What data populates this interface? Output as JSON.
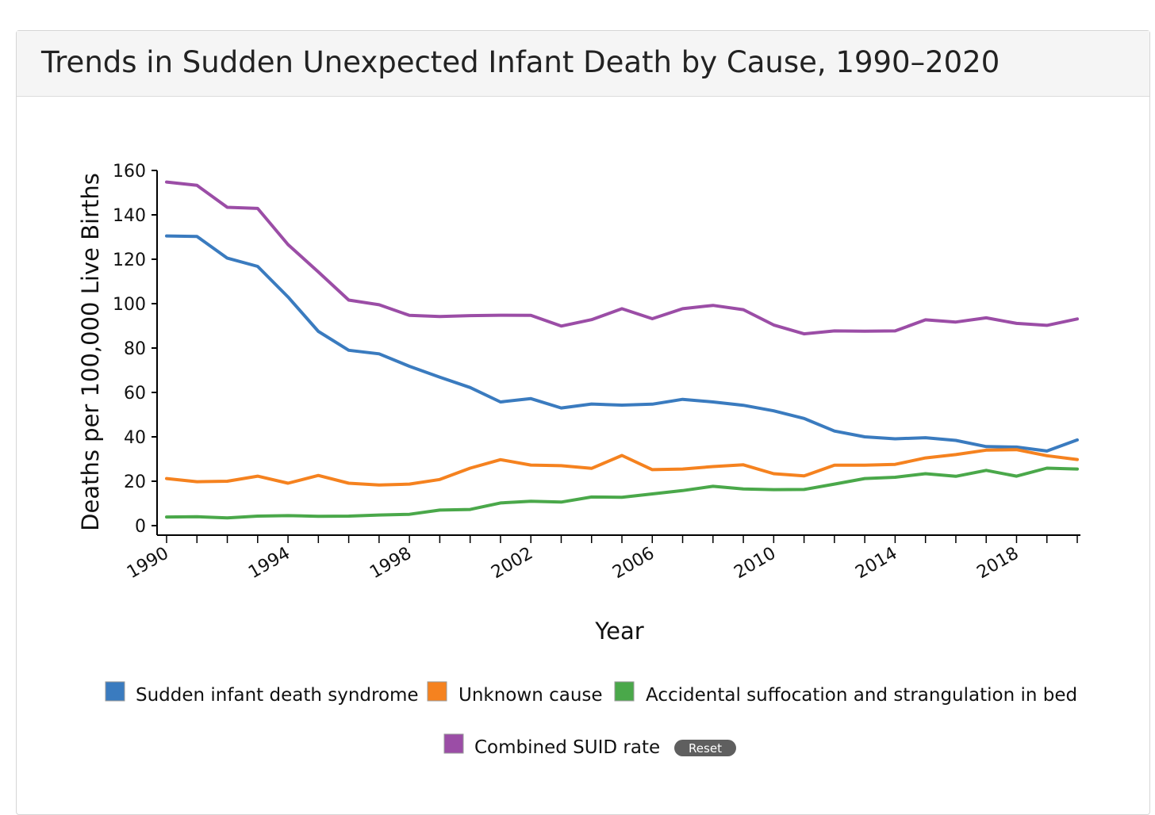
{
  "title": "Trends in Sudden Unexpected Infant Death by Cause, 1990–2020",
  "reset_label": "Reset",
  "chart_data": {
    "type": "line",
    "xlabel": "Year",
    "ylabel": "Deaths per 100,000 Live Births",
    "xlim": [
      1990,
      2020
    ],
    "ylim": [
      0,
      160
    ],
    "x_ticks": [
      1990,
      1994,
      1998,
      2002,
      2006,
      2010,
      2014,
      2018
    ],
    "y_ticks": [
      0,
      20,
      40,
      60,
      80,
      100,
      120,
      140,
      160
    ],
    "grid": false,
    "legend_position": "bottom",
    "x": [
      1990,
      1991,
      1992,
      1993,
      1994,
      1995,
      1996,
      1997,
      1998,
      1999,
      2000,
      2001,
      2002,
      2003,
      2004,
      2005,
      2006,
      2007,
      2008,
      2009,
      2010,
      2011,
      2012,
      2013,
      2014,
      2015,
      2016,
      2017,
      2018,
      2019,
      2020
    ],
    "series": [
      {
        "name": "Sudden infant death syndrome",
        "color": "#3a7bbf",
        "values": [
          130.5,
          130.3,
          120.5,
          116.8,
          103,
          87.5,
          79,
          77.4,
          71.8,
          66.9,
          62.2,
          55.7,
          57.2,
          53,
          54.8,
          54.3,
          54.7,
          56.9,
          55.7,
          54.2,
          51.7,
          48.3,
          42.6,
          40,
          39.1,
          39.6,
          38.4,
          35.6,
          35.4,
          33.6,
          38.6
        ]
      },
      {
        "name": "Unknown cause",
        "color": "#f5821f",
        "values": [
          21.2,
          19.8,
          20,
          22.3,
          19.1,
          22.6,
          19.1,
          18.3,
          18.7,
          20.8,
          25.9,
          29.7,
          27.3,
          27,
          25.8,
          31.6,
          25.2,
          25.5,
          26.6,
          27.4,
          23.4,
          22.4,
          27.2,
          27.2,
          27.6,
          30.5,
          32,
          34,
          34.2,
          31.5,
          29.8
        ]
      },
      {
        "name": "Accidental suffocation and strangulation in bed",
        "color": "#4aa84a",
        "values": [
          3.9,
          4,
          3.5,
          4.3,
          4.5,
          4.2,
          4.3,
          4.8,
          5.1,
          7,
          7.3,
          10.2,
          11,
          10.6,
          12.9,
          12.8,
          14.3,
          15.8,
          17.7,
          16.5,
          16.2,
          16.3,
          18.7,
          21.2,
          21.8,
          23.4,
          22.2,
          24.9,
          22.3,
          25.9,
          25.5
        ]
      },
      {
        "name": "Combined SUID rate",
        "color": "#9b4da6",
        "values": [
          154.8,
          153.3,
          143.4,
          142.9,
          126.6,
          114.3,
          101.6,
          99.5,
          94.7,
          94.2,
          94.6,
          94.8,
          94.7,
          89.9,
          92.8,
          97.7,
          93.2,
          97.7,
          99.2,
          97.3,
          90.4,
          86.4,
          87.7,
          87.6,
          87.7,
          92.7,
          91.7,
          93.6,
          91.1,
          90.2,
          93.1
        ]
      }
    ]
  }
}
